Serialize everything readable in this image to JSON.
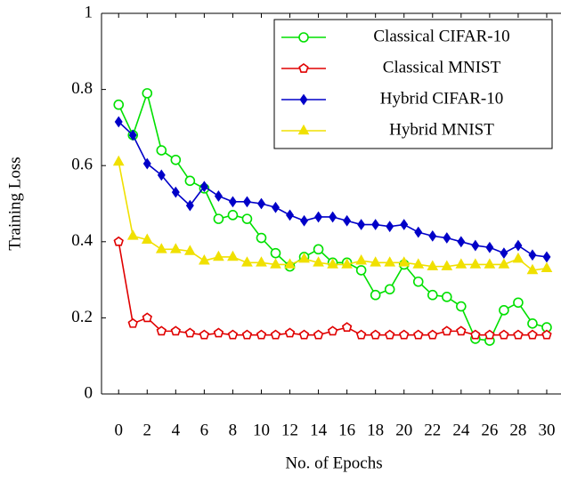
{
  "chart_data": {
    "type": "line",
    "xlabel": "No. of Epochs",
    "ylabel": "Training Loss",
    "x": [
      0,
      1,
      2,
      3,
      4,
      5,
      6,
      7,
      8,
      9,
      10,
      11,
      12,
      13,
      14,
      15,
      16,
      17,
      18,
      19,
      20,
      21,
      22,
      23,
      24,
      25,
      26,
      27,
      28,
      29,
      30
    ],
    "xlim": [
      -1.2,
      31
    ],
    "xticks": [
      0,
      2,
      4,
      6,
      8,
      10,
      12,
      14,
      16,
      18,
      20,
      22,
      24,
      26,
      28,
      30
    ],
    "ylim": [
      0,
      1
    ],
    "yticks": [
      0,
      0.2,
      0.4,
      0.6,
      0.8,
      1
    ],
    "legend": "top-right",
    "series": [
      {
        "name": "Classical CIFAR-10",
        "color": "#00e000",
        "marker": "circle",
        "values": [
          0.76,
          0.68,
          0.79,
          0.64,
          0.615,
          0.56,
          0.54,
          0.46,
          0.47,
          0.46,
          0.41,
          0.37,
          0.335,
          0.36,
          0.38,
          0.345,
          0.345,
          0.325,
          0.26,
          0.275,
          0.34,
          0.295,
          0.26,
          0.255,
          0.23,
          0.145,
          0.14,
          0.22,
          0.24,
          0.185,
          0.175
        ]
      },
      {
        "name": "Classical MNIST",
        "color": "#e00000",
        "marker": "pentagon",
        "values": [
          0.4,
          0.185,
          0.2,
          0.165,
          0.165,
          0.16,
          0.155,
          0.16,
          0.155,
          0.155,
          0.155,
          0.155,
          0.16,
          0.155,
          0.155,
          0.165,
          0.175,
          0.155,
          0.155,
          0.155,
          0.155,
          0.155,
          0.155,
          0.165,
          0.165,
          0.155,
          0.155,
          0.155,
          0.155,
          0.155,
          0.155
        ]
      },
      {
        "name": "Hybrid CIFAR-10",
        "color": "#0000c8",
        "marker": "diamond",
        "values": [
          0.715,
          0.68,
          0.605,
          0.575,
          0.53,
          0.495,
          0.545,
          0.52,
          0.505,
          0.505,
          0.5,
          0.49,
          0.47,
          0.455,
          0.465,
          0.465,
          0.455,
          0.445,
          0.445,
          0.44,
          0.445,
          0.425,
          0.415,
          0.41,
          0.4,
          0.39,
          0.385,
          0.37,
          0.39,
          0.365,
          0.36
        ]
      },
      {
        "name": "Hybrid MNIST",
        "color": "#f0e000",
        "marker": "triangle",
        "values": [
          0.61,
          0.415,
          0.405,
          0.38,
          0.38,
          0.375,
          0.35,
          0.36,
          0.36,
          0.345,
          0.345,
          0.34,
          0.34,
          0.355,
          0.345,
          0.34,
          0.34,
          0.35,
          0.345,
          0.345,
          0.345,
          0.34,
          0.335,
          0.335,
          0.34,
          0.34,
          0.34,
          0.34,
          0.355,
          0.325,
          0.33
        ]
      }
    ]
  }
}
